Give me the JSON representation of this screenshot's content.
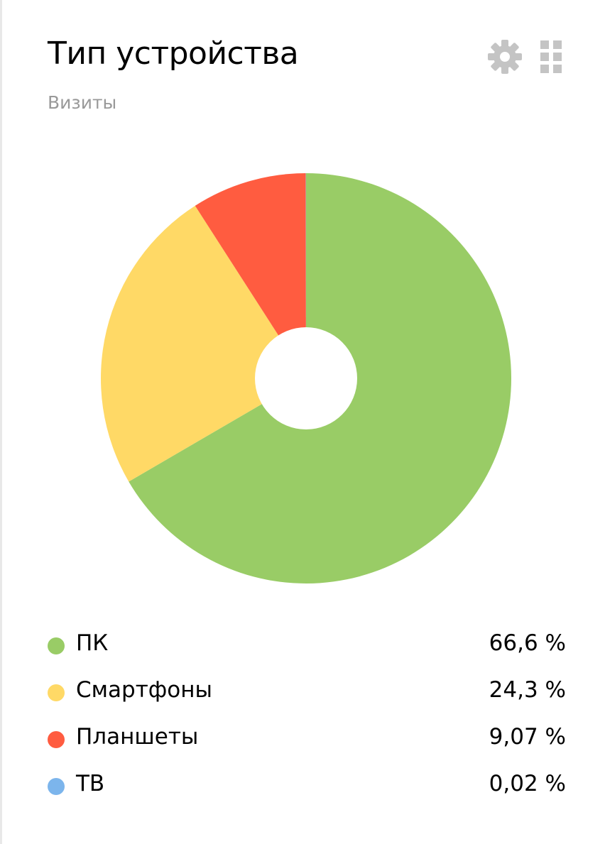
{
  "header": {
    "title": "Тип устройства",
    "subtitle": "Визиты",
    "settings_icon": "gear-icon",
    "grid_icon": "grid-icon"
  },
  "chart_data": {
    "type": "pie",
    "donut": true,
    "categories": [
      "ПК",
      "Смартфоны",
      "Планшеты",
      "ТВ"
    ],
    "values": [
      66.6,
      24.3,
      9.07,
      0.02
    ],
    "value_labels": [
      "66,6 %",
      "24,3 %",
      "9,07 %",
      "0,02 %"
    ],
    "colors": [
      "#99cc66",
      "#ffd966",
      "#ff5c40",
      "#7cb5ec"
    ],
    "legend_position": "bottom",
    "start_angle": "top",
    "direction": "clockwise"
  }
}
